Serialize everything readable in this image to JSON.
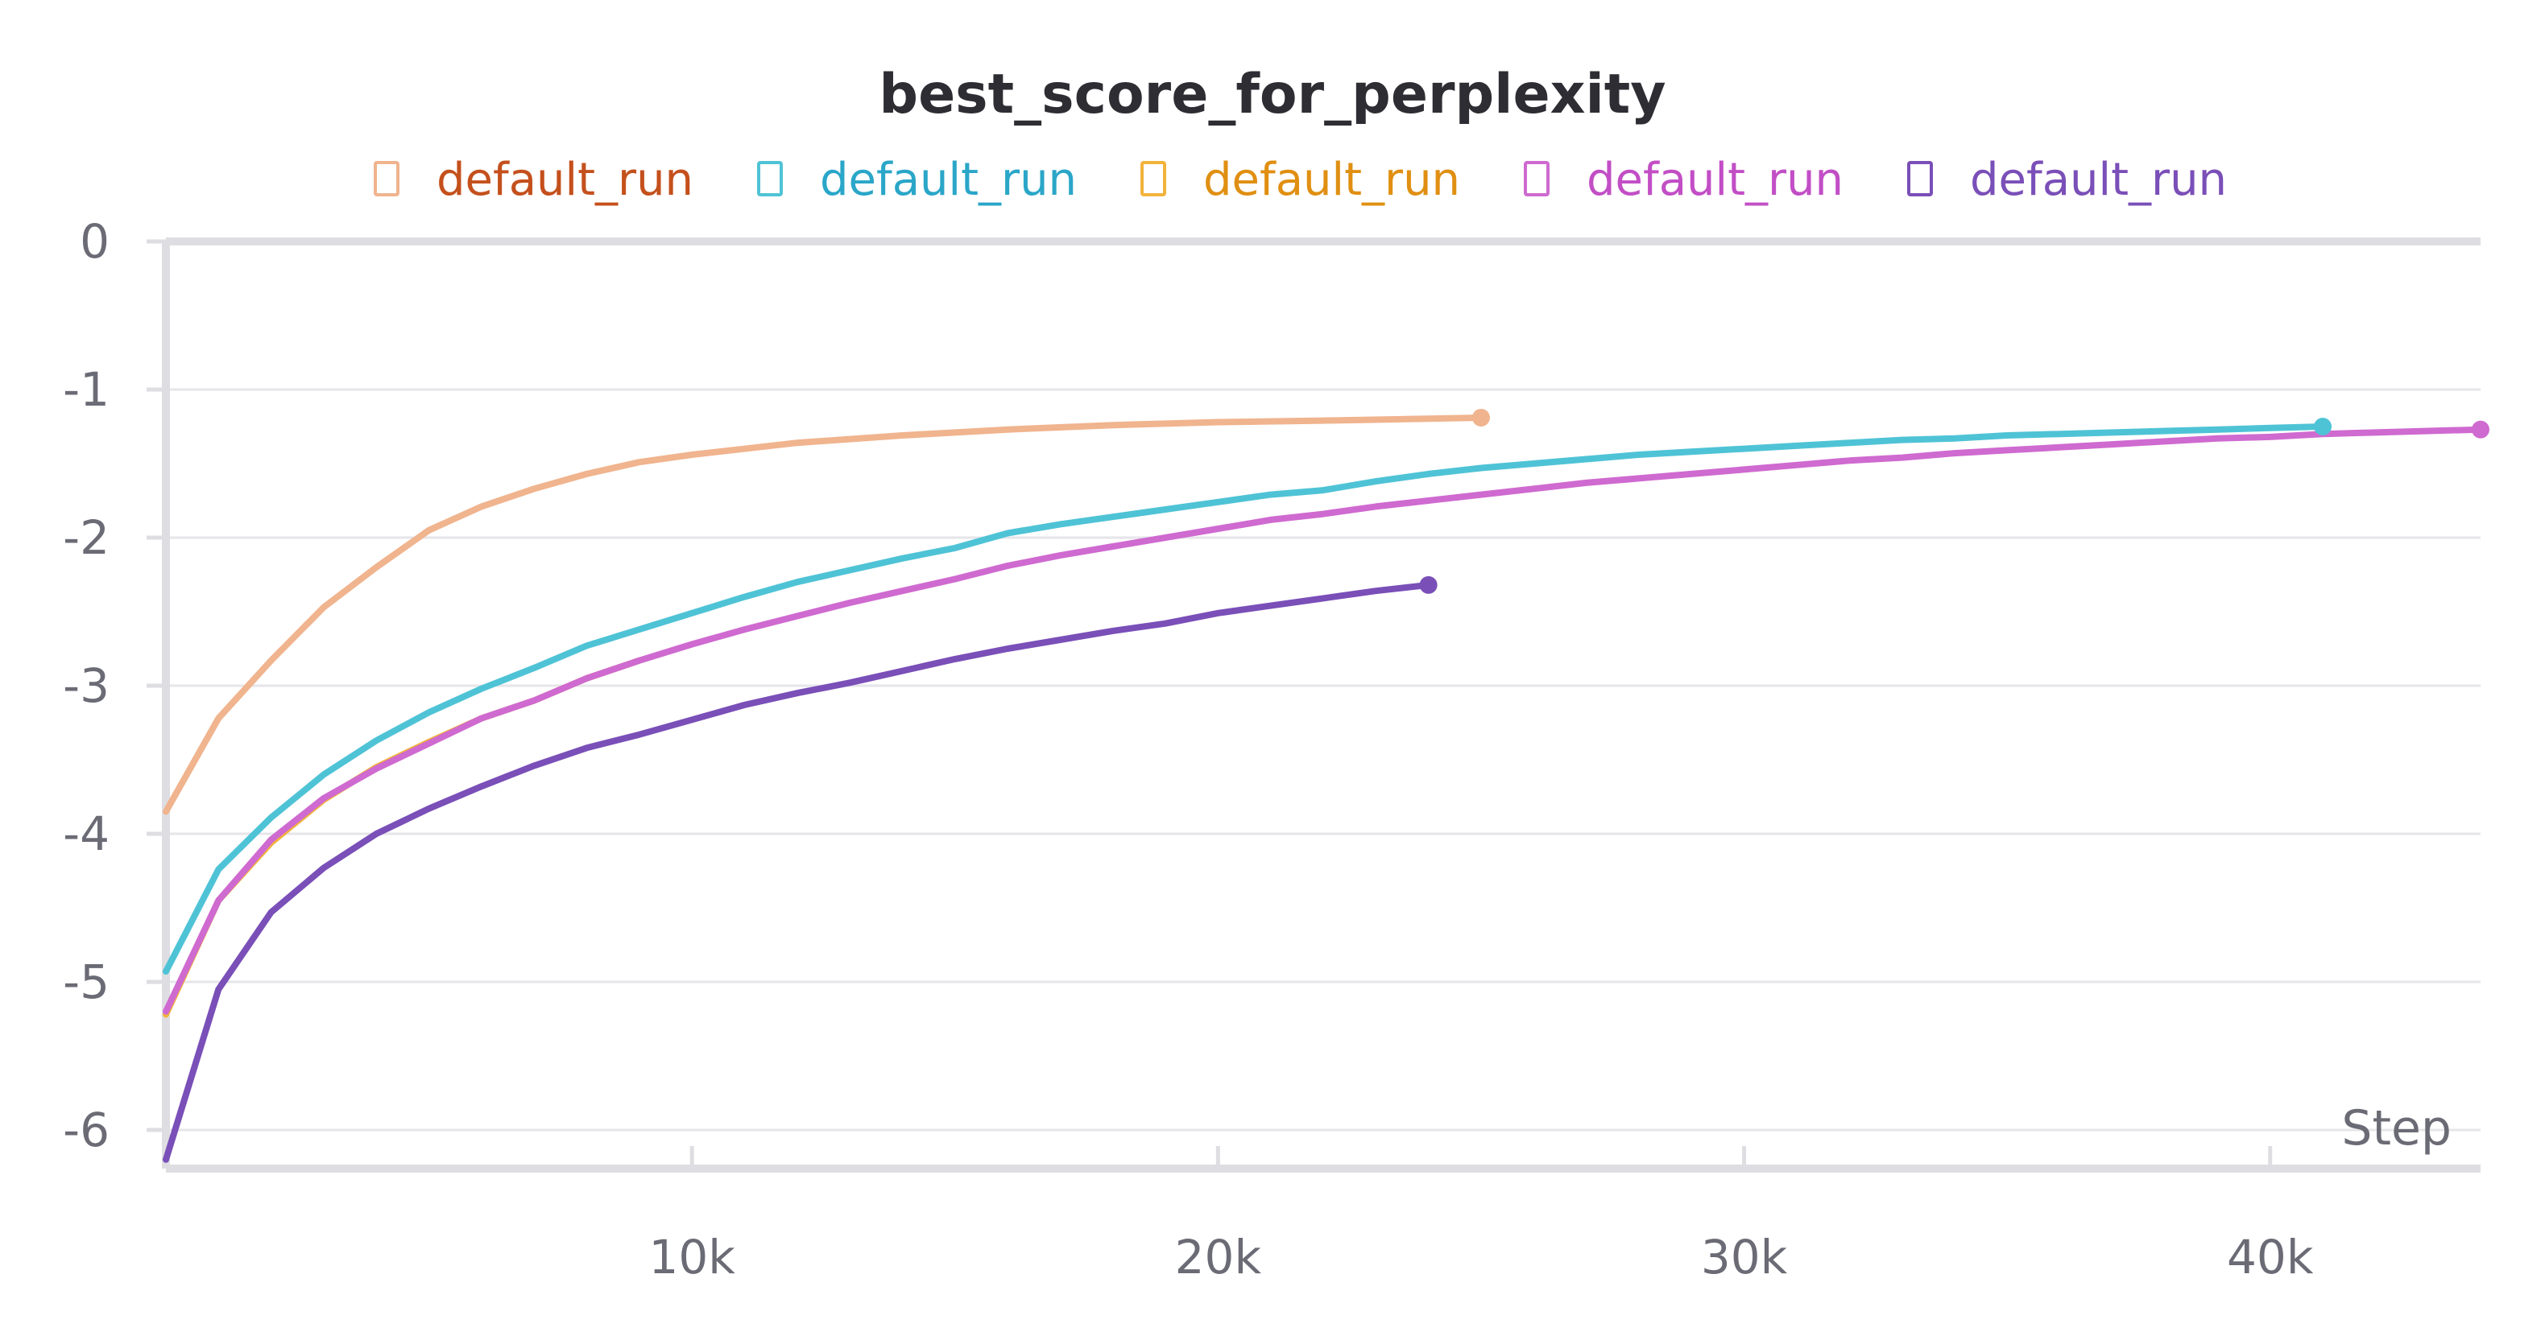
{
  "chart_data": {
    "type": "line",
    "title": "best_score_for_perplexity",
    "xlabel": "Step",
    "ylabel": "",
    "xlim": [
      0,
      44000
    ],
    "ylim": [
      -6.25,
      0
    ],
    "x_ticks": [
      10000,
      20000,
      30000,
      40000
    ],
    "x_tick_labels": [
      "10k",
      "20k",
      "30k",
      "40k"
    ],
    "y_ticks": [
      0,
      -1,
      -2,
      -3,
      -4,
      -5,
      -6
    ],
    "y_tick_labels": [
      "0",
      "-1",
      "-2",
      "-3",
      "-4",
      "-5",
      "-6"
    ],
    "grid": true,
    "legend_position": "top",
    "legend": [
      {
        "label": "default_run",
        "marker_color": "#f0b48e",
        "text_color": "#c4501c"
      },
      {
        "label": "default_run",
        "marker_color": "#4fc3d6",
        "text_color": "#2aa6c8"
      },
      {
        "label": "default_run",
        "marker_color": "#f2b33d",
        "text_color": "#e08f12"
      },
      {
        "label": "default_run",
        "marker_color": "#cf6ad0",
        "text_color": "#c24ec6"
      },
      {
        "label": "default_run",
        "marker_color": "#7a4fb8",
        "text_color": "#7a4fb8"
      }
    ],
    "series": [
      {
        "color": "#f0b48e",
        "end_marker": true,
        "x": [
          0,
          1000,
          2000,
          3000,
          4000,
          5000,
          6000,
          7000,
          8000,
          9000,
          10000,
          12000,
          14000,
          16000,
          18000,
          20000,
          22000,
          25000
        ],
        "y": [
          -3.85,
          -3.22,
          -2.83,
          -2.47,
          -2.2,
          -1.95,
          -1.79,
          -1.67,
          -1.57,
          -1.49,
          -1.44,
          -1.36,
          -1.31,
          -1.27,
          -1.24,
          -1.22,
          -1.21,
          -1.19
        ]
      },
      {
        "color": "#f2b33d",
        "end_marker": false,
        "x": [
          0,
          1000,
          2000,
          3000,
          4000,
          5000,
          6000,
          7000,
          8000,
          9000
        ],
        "y": [
          -5.22,
          -4.45,
          -4.06,
          -3.77,
          -3.55,
          -3.38,
          -3.22,
          -3.1,
          -2.95,
          -2.83
        ]
      },
      {
        "color": "#cf6ad0",
        "end_marker": true,
        "x": [
          0,
          1000,
          2000,
          3000,
          4000,
          5000,
          6000,
          7000,
          8000,
          9000,
          10000,
          11000,
          12000,
          13000,
          14000,
          15000,
          16000,
          17000,
          18000,
          19000,
          20000,
          21000,
          22000,
          23000,
          24000,
          25000,
          26000,
          27000,
          28000,
          29000,
          30000,
          31000,
          32000,
          33000,
          34000,
          35000,
          36000,
          37000,
          38000,
          39000,
          40000,
          41000,
          42000,
          43000,
          44000
        ],
        "y": [
          -5.2,
          -4.45,
          -4.04,
          -3.76,
          -3.56,
          -3.39,
          -3.22,
          -3.1,
          -2.95,
          -2.83,
          -2.72,
          -2.62,
          -2.53,
          -2.44,
          -2.36,
          -2.28,
          -2.19,
          -2.12,
          -2.06,
          -2.0,
          -1.94,
          -1.88,
          -1.84,
          -1.79,
          -1.75,
          -1.71,
          -1.67,
          -1.63,
          -1.6,
          -1.57,
          -1.54,
          -1.51,
          -1.48,
          -1.46,
          -1.43,
          -1.41,
          -1.39,
          -1.37,
          -1.35,
          -1.33,
          -1.32,
          -1.3,
          -1.29,
          -1.28,
          -1.27
        ]
      },
      {
        "color": "#4fc3d6",
        "end_marker": true,
        "x": [
          0,
          1000,
          2000,
          3000,
          4000,
          5000,
          6000,
          7000,
          8000,
          9000,
          10000,
          11000,
          12000,
          13000,
          14000,
          15000,
          16000,
          17000,
          18000,
          19000,
          20000,
          21000,
          22000,
          23000,
          24000,
          25000,
          26000,
          27000,
          28000,
          29000,
          30000,
          31000,
          32000,
          33000,
          34000,
          35000,
          36000,
          37000,
          38000,
          39000,
          40000,
          41000
        ],
        "y": [
          -4.93,
          -4.24,
          -3.89,
          -3.6,
          -3.37,
          -3.18,
          -3.02,
          -2.88,
          -2.73,
          -2.62,
          -2.51,
          -2.4,
          -2.3,
          -2.22,
          -2.14,
          -2.07,
          -1.97,
          -1.91,
          -1.86,
          -1.81,
          -1.76,
          -1.71,
          -1.68,
          -1.62,
          -1.57,
          -1.53,
          -1.5,
          -1.47,
          -1.44,
          -1.42,
          -1.4,
          -1.38,
          -1.36,
          -1.34,
          -1.33,
          -1.31,
          -1.3,
          -1.29,
          -1.28,
          -1.27,
          -1.26,
          -1.25
        ]
      },
      {
        "color": "#7a4fb8",
        "end_marker": true,
        "x": [
          0,
          1000,
          2000,
          3000,
          4000,
          5000,
          6000,
          7000,
          8000,
          9000,
          10000,
          11000,
          12000,
          13000,
          14000,
          15000,
          16000,
          17000,
          18000,
          19000,
          20000,
          21000,
          22000,
          23000,
          24000
        ],
        "y": [
          -6.2,
          -5.05,
          -4.53,
          -4.23,
          -4.0,
          -3.83,
          -3.68,
          -3.54,
          -3.42,
          -3.33,
          -3.23,
          -3.13,
          -3.05,
          -2.98,
          -2.9,
          -2.82,
          -2.75,
          -2.69,
          -2.63,
          -2.58,
          -2.51,
          -2.46,
          -2.41,
          -2.36,
          -2.32
        ]
      }
    ]
  }
}
